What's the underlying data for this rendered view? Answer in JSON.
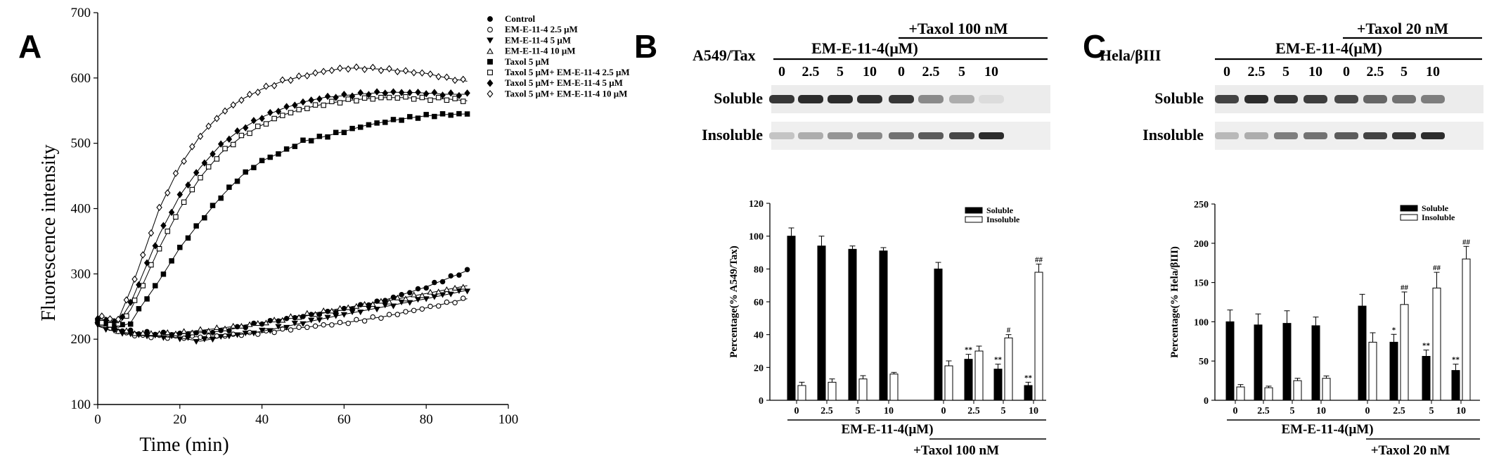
{
  "panels": {
    "A": {
      "letter": "A",
      "chart_data": {
        "type": "scatter",
        "xlabel": "Time (min)",
        "ylabel": "Fluorescence intensity",
        "xlim": [
          0,
          100
        ],
        "ylim": [
          100,
          700
        ],
        "xticks": [
          "0",
          "20",
          "40",
          "60",
          "80",
          "100"
        ],
        "yticks": [
          "100",
          "200",
          "300",
          "400",
          "500",
          "600",
          "700"
        ],
        "legend_position": "top-right",
        "series": [
          {
            "name": "Control",
            "marker": "filled-circle",
            "points": [
              [
                0,
                230
              ],
              [
                5,
                215
              ],
              [
                10,
                210
              ],
              [
                20,
                208
              ],
              [
                30,
                212
              ],
              [
                40,
                225
              ],
              [
                50,
                235
              ],
              [
                60,
                245
              ],
              [
                70,
                260
              ],
              [
                80,
                280
              ],
              [
                90,
                305
              ]
            ]
          },
          {
            "name": "EM-E-11-4 2.5 μM",
            "marker": "open-circle",
            "points": [
              [
                0,
                225
              ],
              [
                5,
                212
              ],
              [
                10,
                205
              ],
              [
                20,
                203
              ],
              [
                30,
                205
              ],
              [
                40,
                210
              ],
              [
                50,
                218
              ],
              [
                60,
                225
              ],
              [
                70,
                235
              ],
              [
                80,
                248
              ],
              [
                90,
                262
              ]
            ]
          },
          {
            "name": "EM-E-11-4 5 μM",
            "marker": "filled-triangle-down",
            "points": [
              [
                0,
                220
              ],
              [
                5,
                210
              ],
              [
                10,
                206
              ],
              [
                20,
                202
              ],
              [
                25,
                197
              ],
              [
                30,
                203
              ],
              [
                40,
                212
              ],
              [
                50,
                225
              ],
              [
                60,
                238
              ],
              [
                70,
                250
              ],
              [
                80,
                262
              ],
              [
                90,
                275
              ]
            ]
          },
          {
            "name": "EM-E-11-4 10 μM",
            "marker": "open-triangle",
            "points": [
              [
                0,
                228
              ],
              [
                5,
                214
              ],
              [
                10,
                209
              ],
              [
                20,
                210
              ],
              [
                30,
                217
              ],
              [
                40,
                225
              ],
              [
                50,
                237
              ],
              [
                60,
                248
              ],
              [
                70,
                258
              ],
              [
                80,
                270
              ],
              [
                90,
                282
              ]
            ]
          },
          {
            "name": "Taxol 5 μM",
            "marker": "filled-square",
            "points": [
              [
                0,
                228
              ],
              [
                5,
                218
              ],
              [
                8,
                225
              ],
              [
                10,
                245
              ],
              [
                15,
                290
              ],
              [
                20,
                340
              ],
              [
                25,
                380
              ],
              [
                30,
                418
              ],
              [
                35,
                450
              ],
              [
                40,
                473
              ],
              [
                45,
                487
              ],
              [
                50,
                503
              ],
              [
                55,
                510
              ],
              [
                60,
                518
              ],
              [
                65,
                527
              ],
              [
                70,
                533
              ],
              [
                75,
                538
              ],
              [
                80,
                542
              ],
              [
                85,
                544
              ],
              [
                90,
                545
              ]
            ]
          },
          {
            "name": "Taxol 5 μM+ EM-E-11-4 2.5 μM",
            "marker": "open-square",
            "points": [
              [
                0,
                225
              ],
              [
                5,
                222
              ],
              [
                8,
                245
              ],
              [
                10,
                270
              ],
              [
                15,
                340
              ],
              [
                20,
                400
              ],
              [
                25,
                448
              ],
              [
                30,
                485
              ],
              [
                35,
                510
              ],
              [
                40,
                528
              ],
              [
                45,
                543
              ],
              [
                50,
                553
              ],
              [
                55,
                560
              ],
              [
                60,
                565
              ],
              [
                65,
                568
              ],
              [
                70,
                570
              ],
              [
                75,
                570
              ],
              [
                80,
                568
              ],
              [
                85,
                568
              ],
              [
                90,
                565
              ]
            ]
          },
          {
            "name": "Taxol 5 μM+ EM-E-11-4 5 μM",
            "marker": "filled-diamond",
            "points": [
              [
                0,
                232
              ],
              [
                5,
                225
              ],
              [
                8,
                255
              ],
              [
                10,
                285
              ],
              [
                15,
                360
              ],
              [
                20,
                420
              ],
              [
                25,
                463
              ],
              [
                30,
                498
              ],
              [
                35,
                522
              ],
              [
                40,
                540
              ],
              [
                45,
                553
              ],
              [
                50,
                563
              ],
              [
                55,
                570
              ],
              [
                60,
                573
              ],
              [
                65,
                576
              ],
              [
                70,
                578
              ],
              [
                75,
                578
              ],
              [
                80,
                577
              ],
              [
                85,
                575
              ],
              [
                90,
                575
              ]
            ]
          },
          {
            "name": "Taxol 5 μM+ EM-E-11-4 10 μM",
            "marker": "open-diamond",
            "points": [
              [
                0,
                235
              ],
              [
                5,
                230
              ],
              [
                8,
                275
              ],
              [
                10,
                310
              ],
              [
                15,
                400
              ],
              [
                20,
                465
              ],
              [
                25,
                512
              ],
              [
                30,
                545
              ],
              [
                35,
                567
              ],
              [
                40,
                583
              ],
              [
                45,
                595
              ],
              [
                50,
                603
              ],
              [
                55,
                610
              ],
              [
                60,
                615
              ],
              [
                65,
                615
              ],
              [
                70,
                613
              ],
              [
                75,
                610
              ],
              [
                80,
                607
              ],
              [
                85,
                600
              ],
              [
                90,
                595
              ]
            ]
          }
        ]
      }
    },
    "B": {
      "letter": "B",
      "blot": {
        "cell_label": "A549/Tax",
        "taxol_label": "+Taxol 100 nM",
        "drug_label": "EM-E-11-4(μM)",
        "columns": [
          "0",
          "2.5",
          "5",
          "10",
          "0",
          "2.5",
          "5",
          "10"
        ],
        "rows": [
          "Soluble",
          "Insoluble"
        ],
        "soluble_intensity": [
          0.85,
          0.9,
          0.9,
          0.88,
          0.85,
          0.5,
          0.35,
          0.15
        ],
        "insoluble_intensity": [
          0.25,
          0.35,
          0.45,
          0.5,
          0.6,
          0.7,
          0.78,
          0.9
        ]
      },
      "chart_data": {
        "type": "bar",
        "ylabel": "Percentage(% A549/Tax)",
        "ylim": [
          0,
          120
        ],
        "yticks": [
          "0",
          "20",
          "40",
          "60",
          "80",
          "100",
          "120"
        ],
        "categories": [
          "0",
          "2.5",
          "5",
          "10",
          "0",
          "2.5",
          "5",
          "10"
        ],
        "xlabel_group": "EM-E-11-4(μM)",
        "condition_label": "+Taxol 100 nM",
        "legend_position": "top-right",
        "series": [
          {
            "name": "Soluble",
            "fill": "#000000",
            "values": [
              100,
              94,
              92,
              91,
              80,
              25,
              19,
              9
            ],
            "errors": [
              5,
              6,
              2,
              2,
              4,
              3,
              3,
              2
            ],
            "marks": [
              "",
              "",
              "",
              "",
              "",
              "**",
              "**",
              "**"
            ]
          },
          {
            "name": "Insoluble",
            "fill": "#ffffff",
            "values": [
              9,
              11,
              13,
              16,
              21,
              30,
              38,
              78
            ],
            "errors": [
              2,
              2,
              2,
              1,
              3,
              3,
              2,
              5
            ],
            "marks": [
              "",
              "",
              "",
              "",
              "",
              "",
              "#",
              "##"
            ]
          }
        ]
      }
    },
    "C": {
      "letter": "C",
      "blot": {
        "cell_label": "Hela/βIII",
        "taxol_label": "+Taxol 20 nM",
        "drug_label": "EM-E-11-4(μM)",
        "columns": [
          "0",
          "2.5",
          "5",
          "10",
          "0",
          "2.5",
          "5",
          "10"
        ],
        "rows": [
          "Soluble",
          "Insoluble"
        ],
        "soluble_intensity": [
          0.8,
          0.9,
          0.85,
          0.82,
          0.78,
          0.65,
          0.6,
          0.55
        ],
        "insoluble_intensity": [
          0.3,
          0.35,
          0.55,
          0.6,
          0.7,
          0.8,
          0.85,
          0.9
        ]
      },
      "chart_data": {
        "type": "bar",
        "ylabel": "Percentage(% Hela/βIII)",
        "ylim": [
          0,
          250
        ],
        "yticks": [
          "0",
          "50",
          "100",
          "150",
          "200",
          "250"
        ],
        "categories": [
          "0",
          "2.5",
          "5",
          "10",
          "0",
          "2.5",
          "5",
          "10"
        ],
        "xlabel_group": "EM-E-11-4(μM)",
        "condition_label": "+Taxol 20 nM",
        "legend_position": "top-right",
        "series": [
          {
            "name": "Soluble",
            "fill": "#000000",
            "values": [
              100,
              96,
              98,
              95,
              120,
              74,
              56,
              38
            ],
            "errors": [
              15,
              14,
              16,
              11,
              15,
              10,
              8,
              8
            ],
            "marks": [
              "",
              "",
              "",
              "",
              "",
              "*",
              "**",
              "**"
            ]
          },
          {
            "name": "Insoluble",
            "fill": "#ffffff",
            "values": [
              17,
              16,
              25,
              28,
              74,
              122,
              143,
              180
            ],
            "errors": [
              3,
              2,
              3,
              3,
              12,
              16,
              20,
              16
            ],
            "marks": [
              "",
              "",
              "",
              "",
              "",
              "##",
              "##",
              "##"
            ]
          }
        ]
      }
    }
  }
}
